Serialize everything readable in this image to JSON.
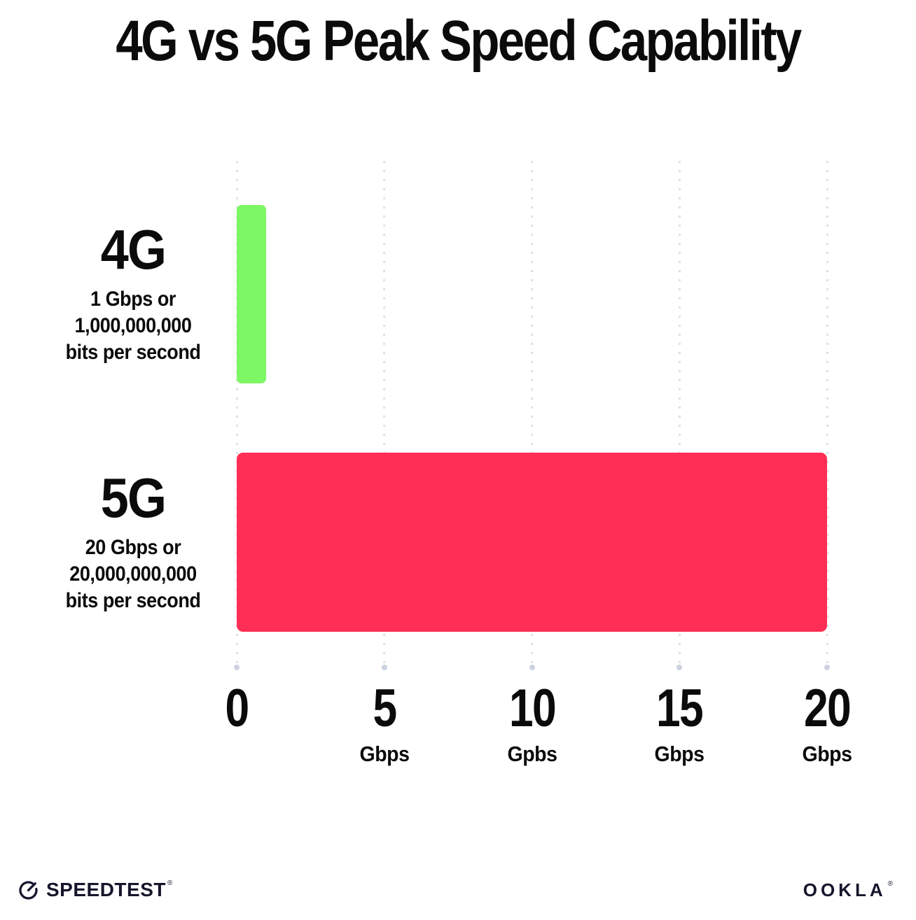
{
  "title": "4G vs 5G Peak Speed Capability",
  "chart_data": {
    "type": "bar",
    "orientation": "horizontal",
    "title": "4G vs 5G Peak Speed Capability",
    "categories": [
      "4G",
      "5G"
    ],
    "values": [
      1,
      20
    ],
    "value_unit": "Gbps",
    "xlim": [
      0,
      20
    ],
    "grid": "dotted-vertical-gridlines",
    "legend": "none",
    "rows": [
      {
        "name": "4G",
        "value": 1,
        "color": "#7DF763",
        "sublabel_lines": [
          "1 Gbps or",
          "1,000,000,000",
          "bits per second"
        ]
      },
      {
        "name": "5G",
        "value": 20,
        "color": "#FF2E56",
        "sublabel_lines": [
          "20 Gbps or",
          "20,000,000,000",
          "bits per second"
        ]
      }
    ],
    "x_ticks": [
      {
        "value": 0,
        "label": "0",
        "unit": ""
      },
      {
        "value": 5,
        "label": "5",
        "unit": "Gbps"
      },
      {
        "value": 10,
        "label": "10",
        "unit": "Gpbs"
      },
      {
        "value": 15,
        "label": "15",
        "unit": "Gbps"
      },
      {
        "value": 20,
        "label": "20",
        "unit": "Gbps"
      }
    ]
  },
  "colors": {
    "bar_4g": "#7DF763",
    "bar_5g": "#FF2E56",
    "gridline_dot": "#DBDEE8",
    "gridline_cap": "#CCD2E0",
    "text": "#0B0B0C",
    "footer_text": "#15162B",
    "background": "#FFFFFF"
  },
  "footer": {
    "speedtest_label": "SPEEDTEST",
    "speedtest_mark": "®",
    "ookla_label": "OOKLA",
    "ookla_mark": "®"
  },
  "icons": {
    "speedtest_gauge": "gauge-icon"
  }
}
